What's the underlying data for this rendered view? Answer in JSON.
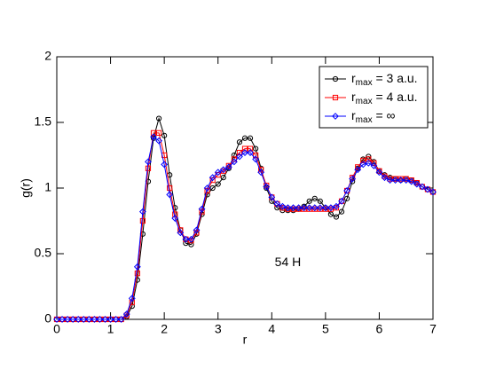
{
  "chart_data": {
    "type": "line",
    "xlabel": "r",
    "ylabel": "g(r)",
    "annotation": "54 H",
    "xlim": [
      0,
      7
    ],
    "ylim": [
      0,
      2
    ],
    "xticks": [
      0,
      1,
      2,
      3,
      4,
      5,
      6,
      7
    ],
    "yticks": [
      0,
      0.5,
      1,
      1.5,
      2
    ],
    "legend": "upper right",
    "x": [
      0,
      0.1,
      0.2,
      0.3,
      0.4,
      0.5,
      0.6,
      0.7,
      0.8,
      0.9,
      1,
      1.1,
      1.2,
      1.3,
      1.4,
      1.5,
      1.6,
      1.7,
      1.8,
      1.9,
      2,
      2.1,
      2.2,
      2.3,
      2.4,
      2.5,
      2.6,
      2.7,
      2.8,
      2.9,
      3,
      3.1,
      3.2,
      3.3,
      3.4,
      3.5,
      3.6,
      3.7,
      3.8,
      3.9,
      4,
      4.1,
      4.2,
      4.3,
      4.4,
      4.5,
      4.6,
      4.7,
      4.8,
      4.9,
      5,
      5.1,
      5.2,
      5.3,
      5.4,
      5.5,
      5.6,
      5.7,
      5.8,
      5.9,
      6,
      6.1,
      6.2,
      6.3,
      6.4,
      6.5,
      6.6,
      6.7,
      6.8,
      6.9,
      7
    ],
    "series": [
      {
        "name": "rmax = 3 a.u.",
        "color": "#000000",
        "marker": "circle",
        "values": [
          0,
          0,
          0,
          0,
          0,
          0,
          0,
          0,
          0,
          0,
          0,
          0,
          0,
          0.02,
          0.1,
          0.3,
          0.65,
          1.05,
          1.38,
          1.53,
          1.4,
          1.1,
          0.85,
          0.68,
          0.58,
          0.57,
          0.65,
          0.8,
          0.95,
          1.0,
          1.03,
          1.08,
          1.15,
          1.25,
          1.35,
          1.38,
          1.38,
          1.3,
          1.15,
          1.0,
          0.9,
          0.85,
          0.83,
          0.83,
          0.83,
          0.84,
          0.86,
          0.9,
          0.92,
          0.9,
          0.85,
          0.8,
          0.78,
          0.82,
          0.92,
          1.05,
          1.15,
          1.22,
          1.24,
          1.2,
          1.13,
          1.1,
          1.08,
          1.07,
          1.06,
          1.07,
          1.06,
          1.04,
          1.01,
          0.99,
          0.97
        ]
      },
      {
        "name": "rmax = 4 a.u.",
        "color": "#ff0000",
        "marker": "square",
        "values": [
          0,
          0,
          0,
          0,
          0,
          0,
          0,
          0,
          0,
          0,
          0,
          0,
          0,
          0.03,
          0.13,
          0.35,
          0.75,
          1.15,
          1.42,
          1.42,
          1.25,
          1.0,
          0.8,
          0.68,
          0.61,
          0.6,
          0.66,
          0.82,
          0.98,
          1.06,
          1.1,
          1.13,
          1.17,
          1.22,
          1.27,
          1.3,
          1.3,
          1.25,
          1.14,
          1.02,
          0.93,
          0.88,
          0.85,
          0.84,
          0.84,
          0.84,
          0.84,
          0.84,
          0.84,
          0.84,
          0.84,
          0.84,
          0.85,
          0.9,
          0.98,
          1.08,
          1.16,
          1.21,
          1.22,
          1.19,
          1.13,
          1.09,
          1.07,
          1.07,
          1.07,
          1.07,
          1.06,
          1.04,
          1.01,
          0.99,
          0.97
        ]
      },
      {
        "name": "rmax = ∞",
        "color": "#0000ff",
        "marker": "diamond",
        "values": [
          0,
          0,
          0,
          0,
          0,
          0,
          0,
          0,
          0,
          0,
          0,
          0,
          0,
          0.04,
          0.16,
          0.4,
          0.82,
          1.2,
          1.39,
          1.36,
          1.18,
          0.95,
          0.77,
          0.66,
          0.61,
          0.61,
          0.68,
          0.84,
          1.0,
          1.08,
          1.12,
          1.14,
          1.16,
          1.2,
          1.24,
          1.27,
          1.27,
          1.22,
          1.12,
          1.01,
          0.93,
          0.88,
          0.86,
          0.85,
          0.85,
          0.85,
          0.85,
          0.85,
          0.85,
          0.85,
          0.85,
          0.85,
          0.86,
          0.9,
          0.98,
          1.07,
          1.14,
          1.18,
          1.19,
          1.17,
          1.12,
          1.08,
          1.06,
          1.06,
          1.06,
          1.06,
          1.05,
          1.03,
          1.01,
          0.99,
          0.97
        ]
      }
    ]
  }
}
